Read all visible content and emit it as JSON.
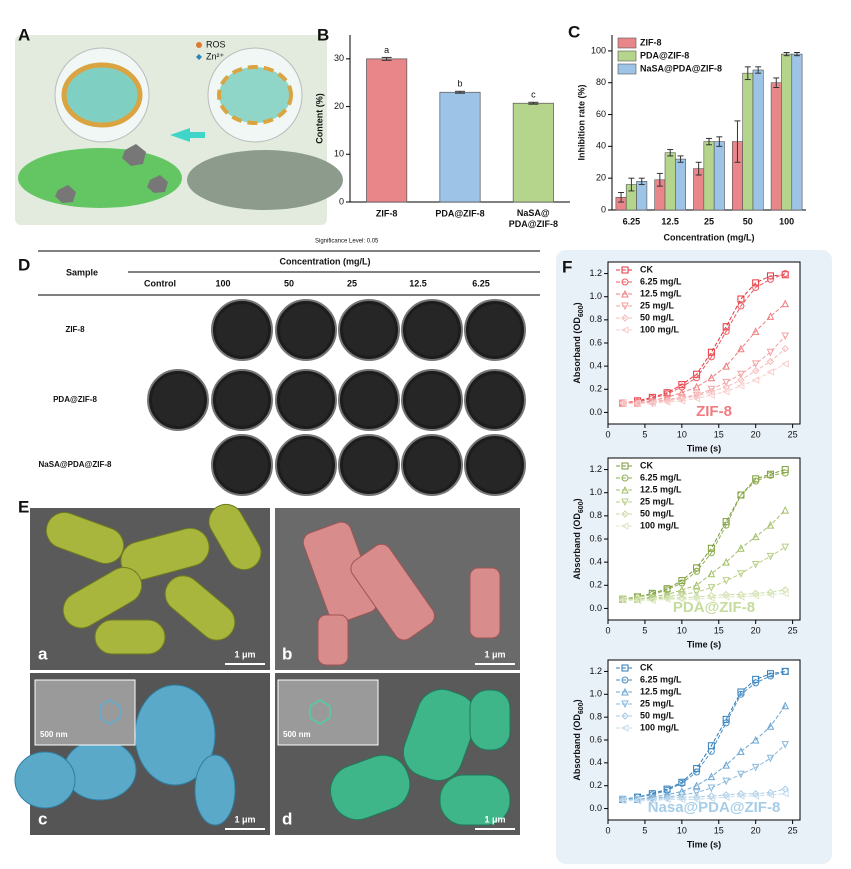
{
  "panel_labels": [
    "A",
    "B",
    "C",
    "D",
    "E",
    "F"
  ],
  "panel_a": {
    "legend": [
      "ROS",
      "Zn²⁺"
    ]
  },
  "significance_note": "Significance Level: 0.05",
  "chart_data": [
    {
      "type": "bar",
      "ylabel": "Content (%)",
      "categories": [
        "ZIF-8",
        "PDA@ZIF-8",
        "NaSA@\nPDA@ZIF-8"
      ],
      "values": [
        30,
        23,
        20.7
      ],
      "errors": [
        0.3,
        0.2,
        0.2
      ],
      "colors": [
        "#e8868a",
        "#9dc3e6",
        "#b5d58c"
      ],
      "annotations": [
        "a",
        "b",
        "c"
      ],
      "ylim": [
        0,
        35
      ],
      "yticks": [
        0,
        10,
        20,
        30
      ]
    },
    {
      "type": "grouped_bar",
      "xlabel": "Concentration (mg/L)",
      "ylabel": "Inhibition rate (%)",
      "categories": [
        "6.25",
        "12.5",
        "25",
        "50",
        "100"
      ],
      "series": [
        {
          "name": "ZIF-8",
          "color": "#e8868a",
          "values": [
            8,
            19,
            26,
            43,
            80
          ],
          "errors": [
            3,
            4,
            4,
            13,
            3
          ]
        },
        {
          "name": "PDA@ZIF-8",
          "color": "#b5d58c",
          "values": [
            16,
            36,
            43,
            86,
            98
          ],
          "errors": [
            4,
            2,
            2,
            4,
            1
          ]
        },
        {
          "name": "NaSA@PDA@ZIF-8",
          "color": "#9dc3e6",
          "values": [
            18,
            32,
            43,
            88,
            98
          ],
          "errors": [
            2,
            2,
            3,
            2,
            1
          ]
        }
      ],
      "ylim": [
        0,
        110
      ],
      "yticks": [
        0,
        20,
        40,
        60,
        80,
        100
      ],
      "legend": "upper-left"
    },
    {
      "type": "line",
      "title": "ZIF-8",
      "title_color": "#f07b80",
      "xlabel": "Time (s)",
      "ylabel": "Absorband (OD600)",
      "x": [
        2,
        4,
        6,
        8,
        10,
        12,
        14,
        16,
        18,
        20,
        22,
        24
      ],
      "series": [
        {
          "name": "CK",
          "color": "#e8333c",
          "marker": "square",
          "values": [
            0.08,
            0.1,
            0.13,
            0.17,
            0.24,
            0.33,
            0.52,
            0.74,
            0.98,
            1.12,
            1.18,
            1.19
          ]
        },
        {
          "name": "6.25 mg/L",
          "color": "#ec5a60",
          "marker": "circle",
          "values": [
            0.08,
            0.09,
            0.12,
            0.16,
            0.22,
            0.3,
            0.48,
            0.7,
            0.92,
            1.08,
            1.15,
            1.2
          ]
        },
        {
          "name": "12.5 mg/L",
          "color": "#f07f82",
          "marker": "triangle-up",
          "values": [
            0.08,
            0.08,
            0.1,
            0.13,
            0.17,
            0.22,
            0.3,
            0.4,
            0.55,
            0.7,
            0.83,
            0.94
          ]
        },
        {
          "name": "25 mg/L",
          "color": "#f3a0a2",
          "marker": "triangle-down",
          "values": [
            0.08,
            0.08,
            0.09,
            0.11,
            0.13,
            0.15,
            0.2,
            0.26,
            0.33,
            0.42,
            0.52,
            0.66
          ]
        },
        {
          "name": "50 mg/L",
          "color": "#f6bcbd",
          "marker": "diamond",
          "values": [
            0.08,
            0.08,
            0.08,
            0.1,
            0.12,
            0.14,
            0.18,
            0.22,
            0.28,
            0.36,
            0.44,
            0.55
          ]
        },
        {
          "name": "100 mg/L",
          "color": "#f9cfcf",
          "marker": "triangle-left",
          "values": [
            0.08,
            0.08,
            0.08,
            0.09,
            0.1,
            0.12,
            0.15,
            0.18,
            0.23,
            0.28,
            0.35,
            0.42
          ]
        }
      ],
      "xlim": [
        0,
        26
      ],
      "xticks": [
        0,
        5,
        10,
        15,
        20,
        25
      ],
      "ylim": [
        -0.1,
        1.3
      ],
      "yticks": [
        {
          "value": 0,
          "label": "0.0"
        },
        0.2,
        0.4,
        0.6,
        0.8,
        {
          "value": 1,
          "label": "1.0"
        },
        1.2
      ],
      "legend": "upper-left"
    },
    {
      "type": "line",
      "title": "PDA@ZIF-8",
      "title_color": "#c5dc9c",
      "xlabel": "Time (s)",
      "ylabel": "Absorband (OD600)",
      "x": [
        2,
        4,
        6,
        8,
        10,
        12,
        14,
        16,
        18,
        20,
        22,
        24
      ],
      "series": [
        {
          "name": "CK",
          "color": "#7a9a3a",
          "marker": "square",
          "values": [
            0.08,
            0.1,
            0.13,
            0.17,
            0.24,
            0.35,
            0.52,
            0.75,
            0.98,
            1.12,
            1.16,
            1.2
          ]
        },
        {
          "name": "6.25 mg/L",
          "color": "#8fae4f",
          "marker": "circle",
          "values": [
            0.08,
            0.1,
            0.12,
            0.16,
            0.22,
            0.32,
            0.48,
            0.72,
            0.98,
            1.1,
            1.15,
            1.17
          ]
        },
        {
          "name": "12.5 mg/L",
          "color": "#a4c06a",
          "marker": "triangle-up",
          "values": [
            0.08,
            0.08,
            0.1,
            0.12,
            0.16,
            0.2,
            0.3,
            0.4,
            0.52,
            0.62,
            0.72,
            0.85
          ]
        },
        {
          "name": "25 mg/L",
          "color": "#b8cf88",
          "marker": "triangle-down",
          "values": [
            0.08,
            0.08,
            0.09,
            0.1,
            0.12,
            0.14,
            0.18,
            0.24,
            0.3,
            0.38,
            0.45,
            0.53
          ]
        },
        {
          "name": "50 mg/L",
          "color": "#cbdda6",
          "marker": "diamond",
          "values": [
            0.08,
            0.08,
            0.08,
            0.09,
            0.09,
            0.1,
            0.11,
            0.12,
            0.12,
            0.13,
            0.14,
            0.16
          ]
        },
        {
          "name": "100 mg/L",
          "color": "#dde8c3",
          "marker": "triangle-left",
          "values": [
            0.07,
            0.07,
            0.07,
            0.08,
            0.08,
            0.08,
            0.09,
            0.1,
            0.1,
            0.11,
            0.12,
            0.13
          ]
        }
      ],
      "xlim": [
        0,
        26
      ],
      "xticks": [
        0,
        5,
        10,
        15,
        20,
        25
      ],
      "ylim": [
        -0.1,
        1.3
      ],
      "yticks": [
        {
          "value": 0,
          "label": "0.0"
        },
        0.2,
        0.4,
        0.6,
        0.8,
        {
          "value": 1,
          "label": "1.0"
        },
        1.2
      ],
      "legend": "upper-left"
    },
    {
      "type": "line",
      "title": "Nasa@PDA@ZIF-8",
      "title_color": "#a6cde8",
      "xlabel": "Time (s)",
      "ylabel": "Absorband (OD600)",
      "x": [
        2,
        4,
        6,
        8,
        10,
        12,
        14,
        16,
        18,
        20,
        22,
        24
      ],
      "series": [
        {
          "name": "CK",
          "color": "#2b7bb9",
          "marker": "square",
          "values": [
            0.08,
            0.1,
            0.13,
            0.17,
            0.23,
            0.35,
            0.55,
            0.78,
            1.02,
            1.13,
            1.18,
            1.2
          ]
        },
        {
          "name": "6.25 mg/L",
          "color": "#4a90c6",
          "marker": "circle",
          "values": [
            0.08,
            0.1,
            0.12,
            0.16,
            0.22,
            0.32,
            0.5,
            0.75,
            1.0,
            1.1,
            1.16,
            1.2
          ]
        },
        {
          "name": "12.5 mg/L",
          "color": "#6aa5d2",
          "marker": "triangle-up",
          "values": [
            0.08,
            0.08,
            0.1,
            0.12,
            0.15,
            0.2,
            0.28,
            0.38,
            0.5,
            0.6,
            0.72,
            0.9
          ]
        },
        {
          "name": "25 mg/L",
          "color": "#8ab9dd",
          "marker": "triangle-down",
          "values": [
            0.08,
            0.08,
            0.09,
            0.1,
            0.12,
            0.14,
            0.18,
            0.24,
            0.3,
            0.36,
            0.44,
            0.56
          ]
        },
        {
          "name": "50 mg/L",
          "color": "#a9cce7",
          "marker": "diamond",
          "values": [
            0.08,
            0.08,
            0.08,
            0.09,
            0.1,
            0.1,
            0.11,
            0.12,
            0.13,
            0.13,
            0.14,
            0.17
          ]
        },
        {
          "name": "100 mg/L",
          "color": "#c6ddef",
          "marker": "triangle-left",
          "values": [
            0.07,
            0.07,
            0.07,
            0.08,
            0.08,
            0.08,
            0.09,
            0.1,
            0.11,
            0.11,
            0.12,
            0.13
          ]
        }
      ],
      "xlim": [
        0,
        26
      ],
      "xticks": [
        0,
        5,
        10,
        15,
        20,
        25
      ],
      "ylim": [
        -0.1,
        1.3
      ],
      "yticks": [
        {
          "value": 0,
          "label": "0.0"
        },
        0.2,
        0.4,
        0.6,
        0.8,
        {
          "value": 1,
          "label": "1.0"
        },
        1.2
      ],
      "legend": "upper-left"
    }
  ],
  "plate_table": {
    "header": "Sample",
    "group_header": "Concentration (mg/L)",
    "columns": [
      "Control",
      "100",
      "50",
      "25",
      "12.5",
      "6.25"
    ],
    "rows": [
      "ZIF-8",
      "PDA@ZIF-8",
      "NaSA@PDA@ZIF-8"
    ]
  },
  "sem": {
    "labels": [
      "a",
      "b",
      "c",
      "d"
    ],
    "scale_bars": [
      "1 μm",
      "1 μm",
      "1 μm",
      "1 μm"
    ],
    "inset_scales": [
      "500 nm",
      "500 nm"
    ]
  }
}
